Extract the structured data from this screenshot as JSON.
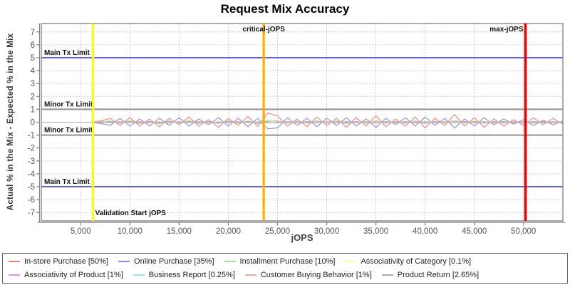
{
  "title": "Request Mix Accuracy",
  "chart_data": {
    "type": "line",
    "title": "Request Mix Accuracy",
    "xlabel": "jOPS",
    "ylabel": "Actual % in the Mix - Expected % in the Mix",
    "xlim": [
      1000,
      54000
    ],
    "ylim": [
      -7.65,
      7.65
    ],
    "grid": true,
    "legend_position": "bottom",
    "x_ticks": [
      5000,
      10000,
      15000,
      20000,
      25000,
      30000,
      35000,
      40000,
      45000,
      50000
    ],
    "x_tick_labels": [
      "5,000",
      "10,000",
      "15,000",
      "20,000",
      "25,000",
      "30,000",
      "35,000",
      "40,000",
      "45,000",
      "50,000"
    ],
    "y_ticks": [
      -7,
      -6,
      -5,
      -4,
      -3,
      -2,
      -1,
      0,
      1,
      2,
      3,
      4,
      5,
      6,
      7
    ],
    "h_markers": [
      {
        "label": "Main Tx Limit",
        "value": 5,
        "color": "#0000dd",
        "width": 1.3
      },
      {
        "label": "Minor Tx Limit",
        "value": 1,
        "color": "#909090",
        "width": 2
      },
      {
        "label": "Minor Tx Limit",
        "value": -1,
        "color": "#909090",
        "width": 2
      },
      {
        "label": "Main Tx Limit",
        "value": -5,
        "color": "#0000dd",
        "width": 1.3
      }
    ],
    "v_markers": [
      {
        "label": "Validation Start jOPS",
        "value": 6250,
        "color": "#ffff00",
        "width": 3.2,
        "label_pos": "bottom-right"
      },
      {
        "label": "critical-jOPS",
        "value": 23600,
        "color": "#ffaa00",
        "width": 3.2,
        "label_pos": "top-center"
      },
      {
        "label": "max-jOPS",
        "value": 50200,
        "color": "#ee0000",
        "width": 3.6,
        "label_pos": "top-left"
      }
    ],
    "x": [
      1000,
      2000,
      3000,
      4000,
      5000,
      6000,
      7000,
      8000,
      9000,
      10000,
      11000,
      12000,
      13000,
      14000,
      15000,
      16000,
      17000,
      18000,
      19000,
      20000,
      21000,
      22000,
      23000,
      24000,
      25000,
      26000,
      27000,
      28000,
      29000,
      30000,
      31000,
      32000,
      33000,
      34000,
      35000,
      36000,
      37000,
      38000,
      39000,
      40000,
      41000,
      42000,
      43000,
      44000,
      45000,
      46000,
      47000,
      48000,
      49000,
      50000,
      51000,
      52000,
      53000,
      54000
    ],
    "series": [
      {
        "name": "In-store Purchase [50%]",
        "color": "#f08080",
        "values": [
          0,
          0,
          0,
          0,
          0,
          0,
          0.1,
          0.3,
          -0.25,
          0.35,
          -0.3,
          0.25,
          -0.35,
          0.3,
          -0.2,
          0.4,
          -0.3,
          0.2,
          -0.4,
          0.3,
          -0.25,
          0.45,
          -0.35,
          0.7,
          0.5,
          -0.3,
          0.25,
          -0.35,
          0.4,
          -0.25,
          0.3,
          -0.4,
          0.35,
          -0.3,
          0.5,
          -0.35,
          0.25,
          -0.3,
          0.4,
          -0.45,
          0.3,
          -0.25,
          0.6,
          -0.3,
          0.35,
          -0.4,
          0.25,
          -0.3,
          0.2,
          -0.25,
          0.35,
          -0.2,
          0.3,
          -0.15
        ]
      },
      {
        "name": "Online Purchase [35%]",
        "color": "#8c8cdc",
        "values": [
          0,
          0,
          0,
          0,
          0,
          0,
          -0.1,
          -0.25,
          0.3,
          -0.3,
          0.25,
          -0.3,
          0.3,
          -0.25,
          0.35,
          -0.3,
          0.25,
          -0.2,
          0.35,
          -0.3,
          0.3,
          -0.35,
          0.3,
          -0.5,
          -0.45,
          0.35,
          -0.25,
          0.3,
          -0.35,
          0.3,
          -0.25,
          0.35,
          -0.3,
          0.25,
          -0.4,
          0.3,
          -0.2,
          0.35,
          -0.3,
          0.4,
          -0.25,
          0.3,
          -0.45,
          0.25,
          -0.3,
          0.35,
          -0.2,
          0.25,
          -0.15,
          0.2,
          -0.25,
          0.15,
          -0.2,
          0.1
        ]
      },
      {
        "name": "Installment Purchase [10%]",
        "color": "#98e698",
        "values": [
          0,
          0,
          0,
          0,
          0,
          0,
          0.05,
          0.1,
          -0.08,
          0.12,
          -0.1,
          0.08,
          -0.12,
          0.1,
          -0.06,
          0.12,
          -0.1,
          0.06,
          -0.1,
          0.12,
          -0.08,
          0.1,
          -0.12,
          0.15,
          0.1,
          -0.08,
          0.1,
          -0.1,
          0.12,
          -0.06,
          0.1,
          -0.12,
          0.08,
          -0.1,
          0.12,
          -0.08,
          0.06,
          -0.1,
          0.1,
          -0.12,
          0.08,
          -0.06,
          0.15,
          -0.08,
          0.1,
          -0.1,
          0.06,
          -0.08,
          0.05,
          -0.06,
          0.08,
          -0.05,
          0.06,
          -0.04
        ]
      },
      {
        "name": "Associativity of Category [0.1%]",
        "color": "#ffff99",
        "values": [
          0,
          0,
          0,
          0,
          0,
          0,
          0.02,
          -0.02,
          0.03,
          -0.02,
          0.02,
          -0.03,
          0.02,
          -0.02,
          0.03,
          -0.02,
          0.02,
          -0.02,
          0.03,
          -0.03,
          0.02,
          -0.02,
          0.03,
          -0.02,
          0.02,
          -0.03,
          0.02,
          -0.02,
          0.03,
          -0.02,
          0.02,
          -0.03,
          0.03,
          -0.02,
          0.02,
          -0.02,
          0.03,
          -0.02,
          0.02,
          -0.03,
          0.02,
          -0.02,
          0.03,
          -0.02,
          0.02,
          -0.02,
          0.03,
          -0.03,
          0.02,
          -0.02,
          0.02,
          -0.03,
          0.02,
          -0.02
        ]
      },
      {
        "name": "Associativity of Product [1%]",
        "color": "#ee90ee",
        "values": [
          0,
          0,
          0,
          0,
          0,
          0,
          -0.03,
          0.03,
          -0.04,
          0.03,
          -0.03,
          0.04,
          -0.03,
          0.03,
          -0.04,
          0.03,
          -0.03,
          0.03,
          -0.04,
          0.04,
          -0.03,
          0.03,
          -0.04,
          0.03,
          -0.03,
          0.04,
          -0.03,
          0.03,
          -0.04,
          0.03,
          -0.03,
          0.04,
          -0.04,
          0.03,
          -0.03,
          0.03,
          -0.04,
          0.03,
          -0.03,
          0.04,
          -0.03,
          0.03,
          -0.04,
          0.03,
          -0.03,
          0.03,
          -0.04,
          0.04,
          -0.03,
          0.03,
          -0.03,
          0.04,
          -0.03,
          0.03
        ]
      },
      {
        "name": "Business Report [0.25%]",
        "color": "#93ecec",
        "values": [
          0,
          0,
          0,
          0,
          0,
          0,
          0.03,
          -0.03,
          0.02,
          -0.03,
          0.03,
          -0.02,
          0.03,
          -0.03,
          0.02,
          -0.03,
          0.03,
          -0.03,
          0.02,
          -0.02,
          0.03,
          -0.03,
          0.02,
          -0.03,
          0.03,
          -0.02,
          0.03,
          -0.03,
          0.02,
          -0.03,
          0.03,
          -0.02,
          0.02,
          -0.03,
          0.03,
          -0.03,
          0.02,
          -0.03,
          0.03,
          -0.02,
          0.03,
          -0.03,
          0.02,
          -0.03,
          0.03,
          -0.03,
          0.02,
          -0.02,
          0.03,
          -0.03,
          0.03,
          -0.02,
          0.03,
          -0.03
        ]
      },
      {
        "name": "Customer Buying Behavior [1%]",
        "color": "#f4a9a9",
        "values": [
          0,
          0,
          0,
          0,
          0,
          0,
          0.04,
          -0.05,
          0.05,
          -0.04,
          0.05,
          -0.05,
          0.04,
          -0.05,
          0.05,
          -0.04,
          0.05,
          -0.05,
          0.04,
          -0.04,
          0.05,
          -0.05,
          0.04,
          -0.05,
          0.05,
          -0.04,
          0.04,
          -0.05,
          0.05,
          -0.04,
          0.05,
          -0.05,
          0.05,
          -0.04,
          0.04,
          -0.05,
          0.05,
          -0.04,
          0.04,
          -0.05,
          0.05,
          -0.04,
          0.05,
          -0.04,
          0.04,
          -0.05,
          0.04,
          -0.04,
          0.05,
          -0.05,
          0.04,
          -0.04,
          0.05,
          -0.04
        ]
      },
      {
        "name": "Product Return [2.65%]",
        "color": "#ababab",
        "values": [
          0,
          0,
          0,
          0,
          0,
          0,
          -0.05,
          0.04,
          -0.04,
          0.05,
          -0.05,
          0.04,
          -0.05,
          0.05,
          -0.04,
          0.05,
          -0.05,
          0.04,
          -0.05,
          0.05,
          -0.04,
          0.04,
          -0.05,
          0.05,
          -0.05,
          0.04,
          -0.04,
          0.05,
          -0.05,
          0.04,
          -0.04,
          0.05,
          -0.05,
          0.04,
          -0.05,
          0.05,
          -0.04,
          0.05,
          -0.05,
          0.04,
          -0.05,
          0.04,
          -0.04,
          0.05,
          -0.05,
          0.04,
          -0.05,
          0.05,
          -0.04,
          0.04,
          -0.05,
          0.05,
          -0.04,
          0.04
        ]
      }
    ]
  }
}
